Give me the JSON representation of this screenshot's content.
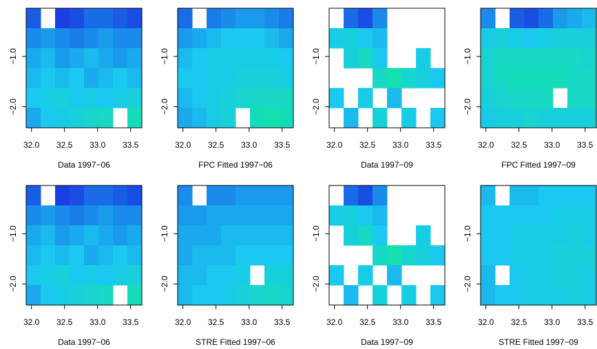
{
  "chart_data": [
    {
      "type": "heatmap",
      "xlabel": "Data 1997−06",
      "colormap": [
        "#1a2fe0",
        "#1ac8f0",
        "#10f080"
      ],
      "xlim": [
        31.92,
        33.67
      ],
      "ylim": [
        -2.42,
        -0.04
      ],
      "xticks": [
        {
          "value": 32,
          "label": "32.0"
        },
        {
          "value": 32.5,
          "label": "32.5"
        },
        {
          "value": 33,
          "label": "33.0"
        },
        {
          "value": 33.5,
          "label": "33.5"
        }
      ],
      "yticks": [
        {
          "value": -1,
          "label": "−1.0"
        },
        {
          "value": -2,
          "label": "−2.0"
        }
      ],
      "z": [
        [
          0.15,
          null,
          0.05,
          0.1,
          0.2,
          0.2,
          0.15,
          0.1
        ],
        [
          0.3,
          0.35,
          0.3,
          0.25,
          0.3,
          0.35,
          0.3,
          0.3
        ],
        [
          0.4,
          0.45,
          0.35,
          0.4,
          0.45,
          0.4,
          0.35,
          0.4
        ],
        [
          0.45,
          0.5,
          0.45,
          0.5,
          0.4,
          0.45,
          0.5,
          0.45
        ],
        [
          0.5,
          0.55,
          0.6,
          0.5,
          0.55,
          0.5,
          0.55,
          0.6
        ],
        [
          0.4,
          0.5,
          0.55,
          0.6,
          0.65,
          0.7,
          null,
          0.75
        ]
      ]
    },
    {
      "type": "heatmap",
      "xlabel": "FPC Fitted 1997−06",
      "colormap": [
        "#1a2fe0",
        "#1ac8f0",
        "#10f080"
      ],
      "xlim": [
        31.92,
        33.67
      ],
      "ylim": [
        -2.42,
        -0.04
      ],
      "xticks": [
        {
          "value": 32,
          "label": "32.0"
        },
        {
          "value": 32.5,
          "label": "32.5"
        },
        {
          "value": 33,
          "label": "33.0"
        },
        {
          "value": 33.5,
          "label": "33.5"
        }
      ],
      "yticks": [
        {
          "value": -1,
          "label": "−1.0"
        },
        {
          "value": -2,
          "label": "−2.0"
        }
      ],
      "z": [
        [
          0.2,
          null,
          0.25,
          0.3,
          0.35,
          0.35,
          0.3,
          0.25
        ],
        [
          0.35,
          0.4,
          0.45,
          0.5,
          0.5,
          0.5,
          0.45,
          0.4
        ],
        [
          0.45,
          0.5,
          0.55,
          0.55,
          0.55,
          0.55,
          0.55,
          0.5
        ],
        [
          0.5,
          0.5,
          0.55,
          0.55,
          0.6,
          0.6,
          0.6,
          0.55
        ],
        [
          0.45,
          0.5,
          0.55,
          0.6,
          0.65,
          0.7,
          0.7,
          0.7
        ],
        [
          0.4,
          0.45,
          0.55,
          0.6,
          null,
          0.75,
          0.8,
          0.75
        ]
      ]
    },
    {
      "type": "heatmap",
      "xlabel": "Data 1997−09",
      "colormap": [
        "#1a2fe0",
        "#1ac8f0",
        "#10f080"
      ],
      "xlim": [
        31.92,
        33.67
      ],
      "ylim": [
        -2.42,
        -0.04
      ],
      "xticks": [
        {
          "value": 32,
          "label": "32.0"
        },
        {
          "value": 32.5,
          "label": "32.5"
        },
        {
          "value": 33,
          "label": "33.0"
        },
        {
          "value": 33.5,
          "label": "33.5"
        }
      ],
      "yticks": [
        {
          "value": -1,
          "label": "−1.0"
        },
        {
          "value": -2,
          "label": "−2.0"
        }
      ],
      "z": [
        [
          null,
          0.2,
          0.1,
          0.3,
          null,
          null,
          null,
          null
        ],
        [
          0.55,
          0.6,
          0.5,
          0.45,
          null,
          null,
          null,
          null
        ],
        [
          null,
          0.6,
          0.7,
          0.5,
          null,
          null,
          0.55,
          null
        ],
        [
          null,
          null,
          null,
          0.7,
          0.8,
          0.65,
          0.6,
          0.5
        ],
        [
          0.5,
          null,
          0.55,
          null,
          0.45,
          null,
          null,
          null
        ],
        [
          null,
          0.45,
          null,
          0.6,
          null,
          0.55,
          null,
          0.5
        ]
      ]
    },
    {
      "type": "heatmap",
      "xlabel": "FPC Fitted 1997−09",
      "colormap": [
        "#1a2fe0",
        "#1ac8f0",
        "#10f080"
      ],
      "xlim": [
        31.92,
        33.67
      ],
      "ylim": [
        -2.42,
        -0.04
      ],
      "xticks": [
        {
          "value": 32,
          "label": "32.0"
        },
        {
          "value": 32.5,
          "label": "32.5"
        },
        {
          "value": 33,
          "label": "33.0"
        },
        {
          "value": 33.5,
          "label": "33.5"
        }
      ],
      "yticks": [
        {
          "value": -1,
          "label": "−1.0"
        },
        {
          "value": -2,
          "label": "−2.0"
        }
      ],
      "z": [
        [
          0.3,
          null,
          0.15,
          0.1,
          0.2,
          0.35,
          0.4,
          0.45
        ],
        [
          0.55,
          0.6,
          0.55,
          0.5,
          0.55,
          0.6,
          0.6,
          0.6
        ],
        [
          0.65,
          0.7,
          0.7,
          0.7,
          0.7,
          0.7,
          0.7,
          0.65
        ],
        [
          0.65,
          0.7,
          0.75,
          0.75,
          0.75,
          0.75,
          0.7,
          0.7
        ],
        [
          0.6,
          0.65,
          0.7,
          0.7,
          0.7,
          null,
          0.7,
          0.7
        ],
        [
          0.55,
          0.6,
          0.6,
          0.65,
          0.6,
          0.6,
          0.6,
          0.6
        ]
      ]
    },
    {
      "type": "heatmap",
      "xlabel": "Data 1997−06",
      "colormap": [
        "#1a2fe0",
        "#1ac8f0",
        "#10f080"
      ],
      "xlim": [
        31.92,
        33.67
      ],
      "ylim": [
        -2.42,
        -0.04
      ],
      "xticks": [
        {
          "value": 32,
          "label": "32.0"
        },
        {
          "value": 32.5,
          "label": "32.5"
        },
        {
          "value": 33,
          "label": "33.0"
        },
        {
          "value": 33.5,
          "label": "33.5"
        }
      ],
      "yticks": [
        {
          "value": -1,
          "label": "−1.0"
        },
        {
          "value": -2,
          "label": "−2.0"
        }
      ],
      "z": [
        [
          0.15,
          null,
          0.05,
          0.1,
          0.2,
          0.2,
          0.15,
          0.1
        ],
        [
          0.3,
          0.35,
          0.3,
          0.25,
          0.3,
          0.35,
          0.3,
          0.3
        ],
        [
          0.4,
          0.45,
          0.35,
          0.4,
          0.45,
          0.4,
          0.35,
          0.4
        ],
        [
          0.45,
          0.5,
          0.45,
          0.5,
          0.4,
          0.45,
          0.5,
          0.45
        ],
        [
          0.5,
          0.55,
          0.6,
          0.5,
          0.55,
          0.5,
          0.55,
          0.6
        ],
        [
          0.4,
          0.5,
          0.55,
          0.6,
          0.65,
          0.7,
          null,
          0.75
        ]
      ]
    },
    {
      "type": "heatmap",
      "xlabel": "STRE Fitted 1997−06",
      "colormap": [
        "#1a2fe0",
        "#1ac8f0",
        "#10f080"
      ],
      "xlim": [
        31.92,
        33.67
      ],
      "ylim": [
        -2.42,
        -0.04
      ],
      "xticks": [
        {
          "value": 32,
          "label": "32.0"
        },
        {
          "value": 32.5,
          "label": "32.5"
        },
        {
          "value": 33,
          "label": "33.0"
        },
        {
          "value": 33.5,
          "label": "33.5"
        }
      ],
      "yticks": [
        {
          "value": -1,
          "label": "−1.0"
        },
        {
          "value": -2,
          "label": "−2.0"
        }
      ],
      "z": [
        [
          0.3,
          null,
          0.3,
          0.3,
          0.35,
          0.35,
          0.35,
          0.35
        ],
        [
          0.35,
          0.35,
          0.4,
          0.4,
          0.4,
          0.4,
          0.4,
          0.4
        ],
        [
          0.4,
          0.4,
          0.4,
          0.45,
          0.45,
          0.45,
          0.45,
          0.45
        ],
        [
          0.4,
          0.45,
          0.45,
          0.45,
          0.5,
          0.5,
          0.5,
          0.5
        ],
        [
          0.45,
          0.45,
          0.5,
          0.5,
          0.55,
          null,
          0.6,
          0.6
        ],
        [
          0.45,
          0.5,
          0.5,
          0.55,
          0.6,
          0.65,
          0.7,
          0.65
        ]
      ]
    },
    {
      "type": "heatmap",
      "xlabel": "Data 1997−09",
      "colormap": [
        "#1a2fe0",
        "#1ac8f0",
        "#10f080"
      ],
      "xlim": [
        31.92,
        33.67
      ],
      "ylim": [
        -2.42,
        -0.04
      ],
      "xticks": [
        {
          "value": 32,
          "label": "32.0"
        },
        {
          "value": 32.5,
          "label": "32.5"
        },
        {
          "value": 33,
          "label": "33.0"
        },
        {
          "value": 33.5,
          "label": "33.5"
        }
      ],
      "yticks": [
        {
          "value": -1,
          "label": "−1.0"
        },
        {
          "value": -2,
          "label": "−2.0"
        }
      ],
      "z": [
        [
          null,
          0.2,
          0.1,
          0.3,
          null,
          null,
          null,
          null
        ],
        [
          0.55,
          0.6,
          0.5,
          0.45,
          null,
          null,
          null,
          null
        ],
        [
          null,
          0.6,
          0.7,
          0.5,
          null,
          null,
          0.55,
          null
        ],
        [
          null,
          null,
          null,
          0.7,
          0.8,
          0.65,
          0.6,
          0.5
        ],
        [
          0.5,
          null,
          0.55,
          null,
          0.45,
          null,
          null,
          null
        ],
        [
          null,
          0.45,
          null,
          0.6,
          null,
          0.55,
          null,
          0.5
        ]
      ]
    },
    {
      "type": "heatmap",
      "xlabel": "STRE Fitted 1997−09",
      "colormap": [
        "#1a2fe0",
        "#1ac8f0",
        "#10f080"
      ],
      "xlim": [
        31.92,
        33.67
      ],
      "ylim": [
        -2.42,
        -0.04
      ],
      "xticks": [
        {
          "value": 32,
          "label": "32.0"
        },
        {
          "value": 32.5,
          "label": "32.5"
        },
        {
          "value": 33,
          "label": "33.0"
        },
        {
          "value": 33.5,
          "label": "33.5"
        }
      ],
      "yticks": [
        {
          "value": -1,
          "label": "−1.0"
        },
        {
          "value": -2,
          "label": "−2.0"
        }
      ],
      "z": [
        [
          0.45,
          null,
          0.45,
          0.45,
          0.5,
          0.5,
          0.5,
          0.5
        ],
        [
          0.5,
          0.5,
          0.5,
          0.5,
          0.5,
          0.55,
          0.55,
          0.55
        ],
        [
          0.5,
          0.5,
          0.55,
          0.55,
          0.55,
          0.55,
          0.6,
          0.55
        ],
        [
          0.5,
          0.5,
          0.55,
          0.55,
          0.55,
          0.6,
          0.6,
          0.6
        ],
        [
          0.45,
          null,
          0.5,
          0.55,
          0.55,
          0.6,
          0.6,
          0.55
        ],
        [
          0.45,
          0.5,
          0.5,
          0.55,
          0.55,
          0.55,
          0.6,
          0.55
        ]
      ]
    }
  ]
}
